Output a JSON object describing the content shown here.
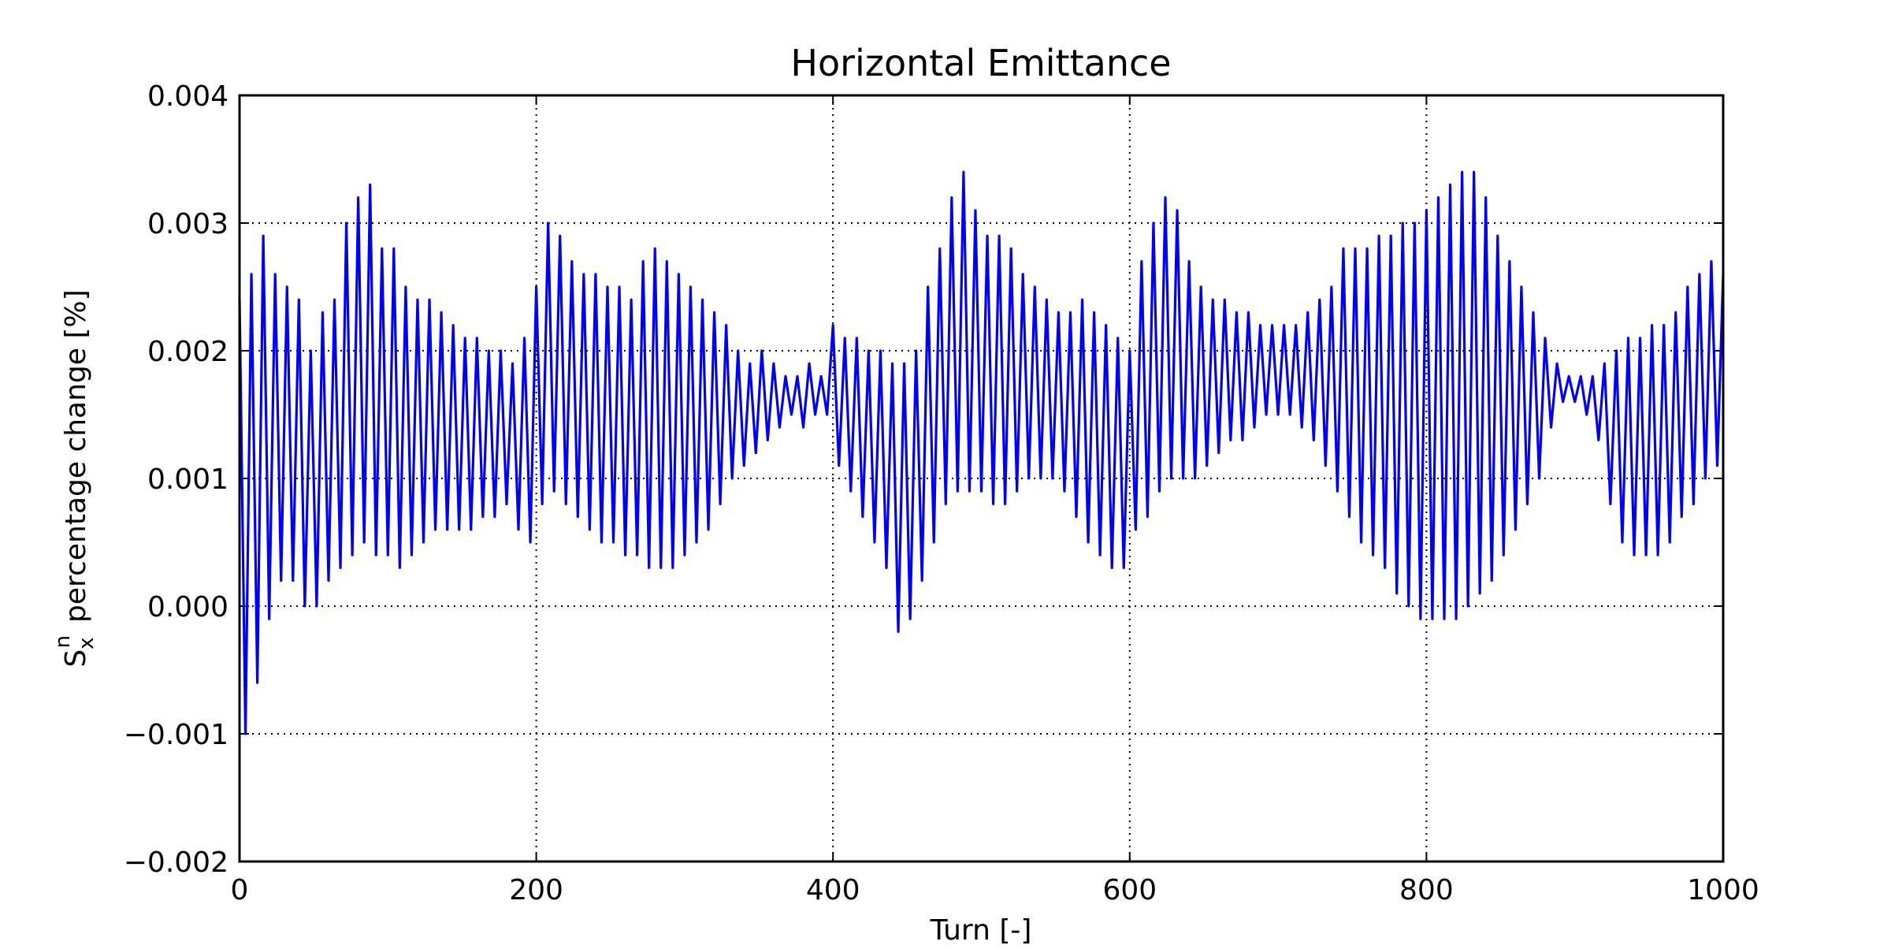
{
  "chart_data": {
    "type": "line",
    "title": "Horizontal Emittance",
    "xlabel": "Turn [-]",
    "ylabel": {
      "symbol": "S",
      "sub": "x",
      "sup": "n",
      "text": "percentage change [%]"
    },
    "xlim": [
      0,
      1000
    ],
    "xticks": [
      0,
      200,
      400,
      600,
      800,
      1000
    ],
    "ylim": [
      -0.002,
      0.004
    ],
    "yticks": [
      {
        "value": -0.002,
        "label": "−0.002"
      },
      {
        "value": -0.001,
        "label": "−0.001"
      },
      {
        "value": 0,
        "label": "0.000"
      },
      0.001,
      0.002,
      0.003,
      0.004
    ],
    "grid": true,
    "series": [
      {
        "color": "#0000ff",
        "x": [
          0,
          4,
          8,
          12,
          16,
          20,
          24,
          28,
          32,
          36,
          40,
          44,
          48,
          52,
          56,
          60,
          64,
          68,
          72,
          76,
          80,
          84,
          88,
          92,
          96,
          100,
          104,
          108,
          112,
          116,
          120,
          124,
          128,
          132,
          136,
          140,
          144,
          148,
          152,
          156,
          160,
          164,
          168,
          172,
          176,
          180,
          184,
          188,
          192,
          196,
          200,
          204,
          208,
          212,
          216,
          220,
          224,
          228,
          232,
          236,
          240,
          244,
          248,
          252,
          256,
          260,
          264,
          268,
          272,
          276,
          280,
          284,
          288,
          292,
          296,
          300,
          304,
          308,
          312,
          316,
          320,
          324,
          328,
          332,
          336,
          340,
          344,
          348,
          352,
          356,
          360,
          364,
          368,
          372,
          376,
          380,
          384,
          388,
          392,
          396,
          400,
          404,
          408,
          412,
          416,
          420,
          424,
          428,
          432,
          436,
          440,
          444,
          448,
          452,
          456,
          460,
          464,
          468,
          472,
          476,
          480,
          484,
          488,
          492,
          496,
          500,
          504,
          508,
          512,
          516,
          520,
          524,
          528,
          532,
          536,
          540,
          544,
          548,
          552,
          556,
          560,
          564,
          568,
          572,
          576,
          580,
          584,
          588,
          592,
          596,
          600,
          604,
          608,
          612,
          616,
          620,
          624,
          628,
          632,
          636,
          640,
          644,
          648,
          652,
          656,
          660,
          664,
          668,
          672,
          676,
          680,
          684,
          688,
          692,
          696,
          700,
          704,
          708,
          712,
          716,
          720,
          724,
          728,
          732,
          736,
          740,
          744,
          748,
          752,
          756,
          760,
          764,
          768,
          772,
          776,
          780,
          784,
          788,
          792,
          796,
          800,
          804,
          808,
          812,
          816,
          820,
          824,
          828,
          832,
          836,
          840,
          844,
          848,
          852,
          856,
          860,
          864,
          868,
          872,
          876,
          880,
          884,
          888,
          892,
          896,
          900,
          904,
          908,
          912,
          916,
          920,
          924,
          928,
          932,
          936,
          940,
          944,
          948,
          952,
          956,
          960,
          964,
          968,
          972,
          976,
          980,
          984,
          988,
          992,
          996,
          1000
        ],
        "values": [
          0.0024,
          -0.001,
          0.0026,
          -0.0006,
          0.0029,
          -0.0001,
          0.0026,
          0.0002,
          0.0025,
          0.0002,
          0.0024,
          0,
          0.002,
          0,
          0.0023,
          0.0002,
          0.0024,
          0.0003,
          0.003,
          0.0004,
          0.0032,
          0.0005,
          0.0033,
          0.0004,
          0.0028,
          0.0004,
          0.0028,
          0.0003,
          0.0025,
          0.0004,
          0.0024,
          0.0005,
          0.0024,
          0.0006,
          0.0023,
          0.0006,
          0.0022,
          0.0006,
          0.0021,
          0.0006,
          0.0021,
          0.0007,
          0.002,
          0.0007,
          0.002,
          0.0008,
          0.0019,
          0.0006,
          0.0021,
          0.0005,
          0.0025,
          0.0008,
          0.003,
          0.0009,
          0.0029,
          0.0008,
          0.0027,
          0.0007,
          0.0026,
          0.0006,
          0.0026,
          0.0005,
          0.0025,
          0.0005,
          0.0025,
          0.0004,
          0.0024,
          0.0004,
          0.0027,
          0.0003,
          0.0028,
          0.0003,
          0.0027,
          0.0003,
          0.0026,
          0.0004,
          0.0025,
          0.0005,
          0.0024,
          0.0006,
          0.0023,
          0.0008,
          0.0022,
          0.001,
          0.002,
          0.0011,
          0.0019,
          0.0012,
          0.002,
          0.0013,
          0.0019,
          0.0014,
          0.0018,
          0.0015,
          0.0018,
          0.0014,
          0.0019,
          0.0015,
          0.0018,
          0.0015,
          0.0022,
          0.0011,
          0.0021,
          0.0009,
          0.0021,
          0.0007,
          0.002,
          0.0005,
          0.002,
          0.0003,
          0.0019,
          -0.0002,
          0.0019,
          -0.0001,
          0.002,
          0.0002,
          0.0025,
          0.0005,
          0.0028,
          0.0008,
          0.0032,
          0.0009,
          0.0034,
          0.0009,
          0.0031,
          0.0009,
          0.0029,
          0.0008,
          0.0029,
          0.0008,
          0.0028,
          0.0009,
          0.0026,
          0.001,
          0.0025,
          0.001,
          0.0024,
          0.001,
          0.0023,
          0.0009,
          0.0023,
          0.0007,
          0.0024,
          0.0005,
          0.0023,
          0.0004,
          0.0022,
          0.0003,
          0.0021,
          0.0003,
          0.002,
          0.0006,
          0.0027,
          0.0007,
          0.003,
          0.0009,
          0.0032,
          0.001,
          0.0031,
          0.001,
          0.0027,
          0.001,
          0.0025,
          0.0011,
          0.0024,
          0.0012,
          0.0024,
          0.0013,
          0.0023,
          0.0013,
          0.0023,
          0.0014,
          0.0022,
          0.0015,
          0.0022,
          0.0015,
          0.0022,
          0.0015,
          0.0022,
          0.0014,
          0.0023,
          0.0013,
          0.0024,
          0.0011,
          0.0025,
          0.0009,
          0.0028,
          0.0007,
          0.0028,
          0.0005,
          0.0028,
          0.0004,
          0.0029,
          0.0003,
          0.0029,
          0.0001,
          0.003,
          0,
          0.003,
          -0.0001,
          0.0031,
          -0.0001,
          0.0032,
          -0.0001,
          0.0033,
          -0.0001,
          0.0034,
          0,
          0.0034,
          0.0001,
          0.0032,
          0.0002,
          0.0029,
          0.0004,
          0.0027,
          0.0006,
          0.0025,
          0.0008,
          0.0023,
          0.001,
          0.0021,
          0.0014,
          0.0019,
          0.0016,
          0.0018,
          0.0016,
          0.0018,
          0.0015,
          0.0018,
          0.0013,
          0.0019,
          0.0008,
          0.002,
          0.0005,
          0.0021,
          0.0004,
          0.0021,
          0.0004,
          0.0022,
          0.0004,
          0.0022,
          0.0005,
          0.0023,
          0.0007,
          0.0025,
          0.0008,
          0.0026,
          0.001,
          0.0027,
          0.0011,
          0.0026
        ]
      }
    ]
  }
}
